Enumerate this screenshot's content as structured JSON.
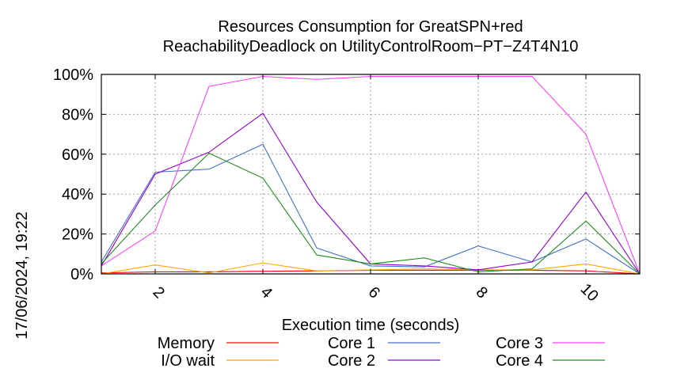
{
  "chart_data": {
    "type": "line",
    "title_line1": "Resources Consumption for GreatSPN+red",
    "title_line2": "ReachabilityDeadlock on UtilityControlRoom−PT−Z4T4N10",
    "xlabel": "Execution time (seconds)",
    "ylabel": "",
    "timestamp": "17/06/2024, 19:22",
    "xlim": [
      1,
      11
    ],
    "ylim": [
      0,
      100
    ],
    "x_ticks": [
      2,
      4,
      6,
      8,
      10
    ],
    "y_ticks": [
      0,
      20,
      40,
      60,
      80,
      100
    ],
    "y_tick_suffix": "%",
    "grid": true,
    "legend_position": "bottom",
    "x": [
      1,
      2,
      3,
      4,
      5,
      6,
      7,
      8,
      9,
      10,
      11
    ],
    "series": [
      {
        "name": "Memory",
        "color": "#ff0000",
        "values": [
          0.5,
          1,
          1,
          1.3,
          1.5,
          1.8,
          1.8,
          1.8,
          1.8,
          1.5,
          0
        ]
      },
      {
        "name": "I/O wait",
        "color": "#ffa500",
        "values": [
          0,
          4.5,
          0.5,
          5.5,
          1.5,
          2,
          2.5,
          2,
          2,
          5,
          0
        ]
      },
      {
        "name": "Core 1",
        "color": "#4472c4",
        "values": [
          6,
          51,
          52.5,
          65,
          13,
          4,
          3.5,
          14,
          6,
          17.5,
          0
        ]
      },
      {
        "name": "Core 2",
        "color": "#9400d3",
        "values": [
          4,
          50,
          61,
          80.5,
          36,
          5,
          4,
          2,
          6,
          41,
          0
        ]
      },
      {
        "name": "Core 3",
        "color": "#ff40ff",
        "values": [
          4,
          21.5,
          94,
          99,
          97.5,
          99,
          99,
          99,
          99,
          70,
          0
        ]
      },
      {
        "name": "Core 4",
        "color": "#228b22",
        "values": [
          5,
          34.5,
          60.5,
          48,
          9.5,
          5,
          8,
          1,
          2.5,
          26.5,
          0
        ]
      }
    ]
  }
}
